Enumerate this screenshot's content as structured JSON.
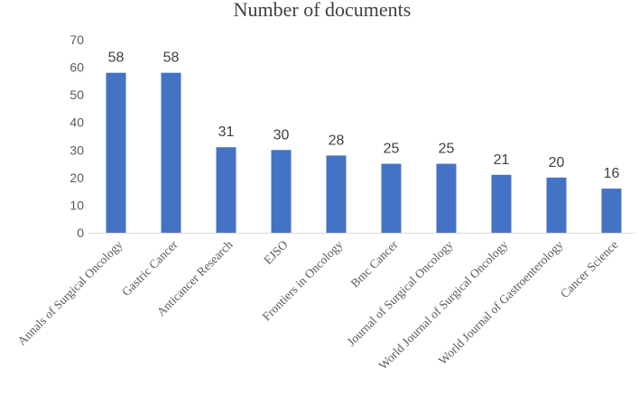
{
  "chart_data": {
    "type": "bar",
    "title": "Number of documents",
    "xlabel": "",
    "ylabel": "",
    "ylim": [
      0,
      70
    ],
    "yticks": [
      0,
      10,
      20,
      30,
      40,
      50,
      60,
      70
    ],
    "grid": false,
    "legend": "none",
    "bar_color": "#4472C4",
    "categories": [
      "Annals of Surgical Oncology",
      "Gastric Cancer",
      "Anticancer Research",
      "EJSO",
      "Frontiers in Oncology",
      "Bmc Cancer",
      "Journal of Surgical Oncology",
      "World Journal of Surgical Oncology",
      "World Journal of Gastroenterology",
      "Cancer Science"
    ],
    "values": [
      58,
      58,
      31,
      30,
      28,
      25,
      25,
      21,
      20,
      16
    ]
  }
}
